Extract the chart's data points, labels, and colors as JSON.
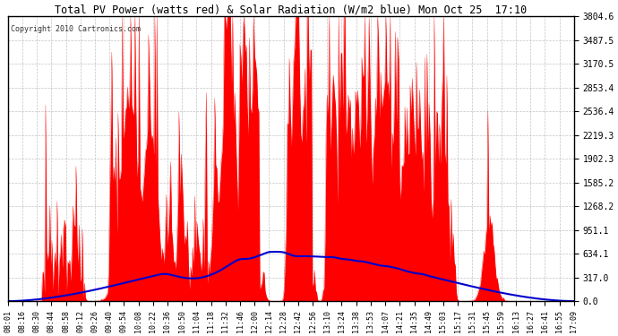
{
  "title": "Total PV Power (watts red) & Solar Radiation (W/m2 blue) Mon Oct 25  17:10",
  "copyright": "Copyright 2010 Cartronics.com",
  "ylabel_right_ticks": [
    0.0,
    317.0,
    634.1,
    951.1,
    1268.2,
    1585.2,
    1902.3,
    2219.3,
    2536.4,
    2853.4,
    3170.5,
    3487.5,
    3804.6
  ],
  "ymax": 3804.6,
  "ymin": 0.0,
  "x_tick_labels": [
    "08:01",
    "08:16",
    "08:30",
    "08:44",
    "08:58",
    "09:12",
    "09:26",
    "09:40",
    "09:54",
    "10:08",
    "10:22",
    "10:36",
    "10:50",
    "11:04",
    "11:18",
    "11:32",
    "11:46",
    "12:00",
    "12:14",
    "12:28",
    "12:42",
    "12:56",
    "13:10",
    "13:24",
    "13:38",
    "13:53",
    "14:07",
    "14:21",
    "14:35",
    "14:49",
    "15:03",
    "15:17",
    "15:31",
    "15:45",
    "15:59",
    "16:13",
    "16:27",
    "16:41",
    "16:55",
    "17:09"
  ],
  "bg_color": "#ffffff",
  "grid_color": "#aaaaaa",
  "red_fill": "#ff0000",
  "blue_line": "#0000cc",
  "title_color": "#000000",
  "copyright_color": "#333333"
}
